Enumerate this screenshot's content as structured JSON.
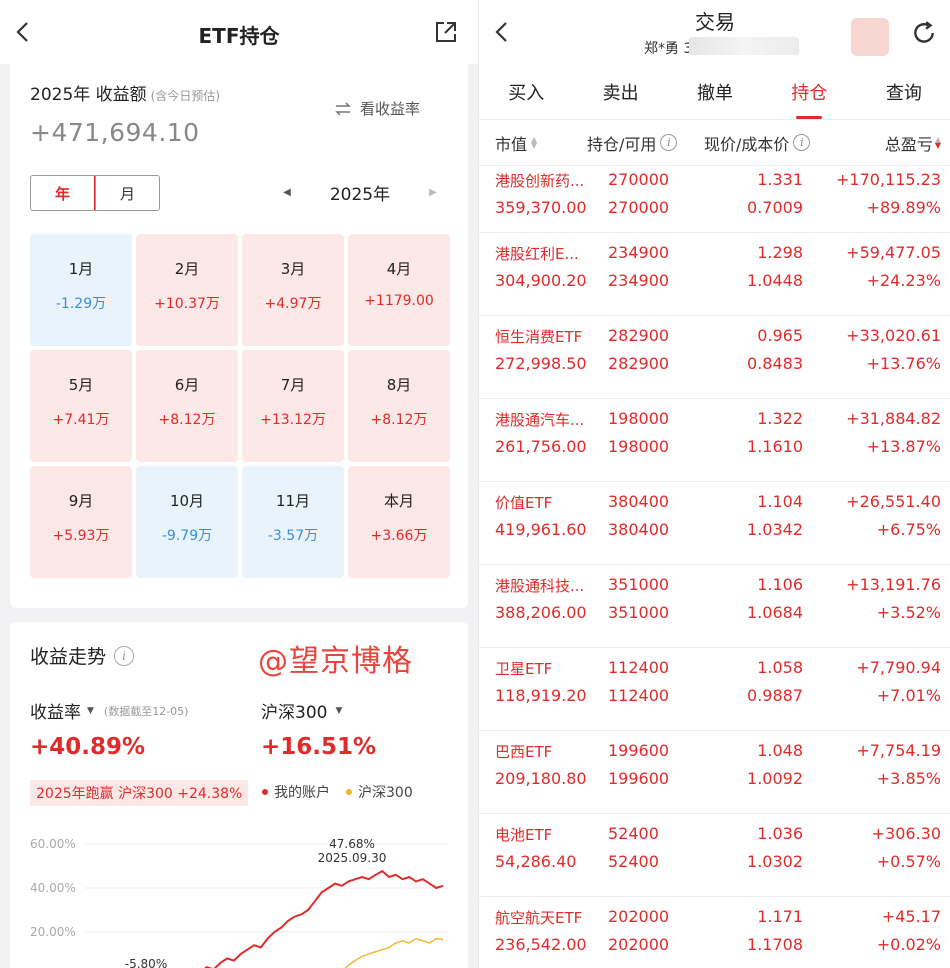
{
  "left": {
    "header": {
      "title": "ETF持仓"
    },
    "summary": {
      "title": "2025年 收益额",
      "estimate_note": "(含今日预估)",
      "switch_label": "看收益率",
      "amount": "+471,694.10"
    },
    "segment": {
      "year_label": "年",
      "month_label": "月"
    },
    "year_nav": {
      "year": "2025年"
    },
    "months": [
      {
        "month": "1月",
        "value": "-1.29万",
        "sign": "neg"
      },
      {
        "month": "2月",
        "value": "+10.37万",
        "sign": "pos"
      },
      {
        "month": "3月",
        "value": "+4.97万",
        "sign": "pos"
      },
      {
        "month": "4月",
        "value": "+1179.00",
        "sign": "pos"
      },
      {
        "month": "5月",
        "value": "+7.41万",
        "sign": "pos"
      },
      {
        "month": "6月",
        "value": "+8.12万",
        "sign": "pos"
      },
      {
        "month": "7月",
        "value": "+13.12万",
        "sign": "pos"
      },
      {
        "month": "8月",
        "value": "+8.12万",
        "sign": "pos"
      },
      {
        "month": "9月",
        "value": "+5.93万",
        "sign": "pos"
      },
      {
        "month": "10月",
        "value": "-9.79万",
        "sign": "neg"
      },
      {
        "month": "11月",
        "value": "-3.57万",
        "sign": "neg"
      },
      {
        "month": "本月",
        "value": "+3.66万",
        "sign": "pos"
      }
    ],
    "trend": {
      "title": "收益走势",
      "watermark": "@望京博格",
      "rate_label": "收益率",
      "data_note": "(数据截至12-05)",
      "bench_label": "沪深300",
      "rate_value": "+40.89%",
      "bench_value": "+16.51%",
      "beat_text": "2025年跑赢 沪深300 +24.38%",
      "legend_mine": "我的账户",
      "legend_bench": "沪深300",
      "colors": {
        "mine": "#e02b2b",
        "bench": "#f0b429"
      }
    }
  },
  "chart_data": {
    "type": "line",
    "y_ticks": [
      "60.00%",
      "40.00%",
      "20.00%"
    ],
    "ylim": [
      0,
      60
    ],
    "annotations": [
      {
        "text": "47.68%",
        "x": "2025.09.30",
        "y": 47.68
      },
      {
        "text": "2025.09.30",
        "x": "2025.09.30",
        "y": 47.68
      },
      {
        "text": "-5.80%",
        "y": -5.8
      }
    ],
    "series": [
      {
        "name": "我的账户",
        "values": [
          -5.8,
          -3,
          -1,
          2,
          4,
          3,
          6,
          8,
          7,
          10,
          12,
          14,
          13,
          17,
          20,
          22,
          25,
          27,
          28,
          30,
          34,
          38,
          40,
          42,
          41,
          43,
          44,
          45,
          44,
          46,
          47.68,
          45,
          46,
          44,
          45,
          43,
          44,
          42,
          40,
          41
        ]
      },
      {
        "name": "沪深300",
        "values": [
          null,
          null,
          null,
          null,
          null,
          null,
          null,
          null,
          null,
          null,
          null,
          null,
          null,
          null,
          null,
          null,
          null,
          null,
          null,
          null,
          null,
          -6,
          -4,
          -2,
          2,
          5,
          7,
          9,
          10,
          11,
          12,
          13,
          15,
          16,
          15,
          17,
          16,
          15,
          17,
          16.51
        ]
      }
    ]
  },
  "right": {
    "header": {
      "title": "交易",
      "account": "郑*勇 3"
    },
    "tabs": [
      "买入",
      "卖出",
      "撤单",
      "持仓",
      "查询"
    ],
    "active_tab": "持仓",
    "columns": {
      "c1": "市值",
      "c2": "持仓/可用",
      "c3": "现价/成本价",
      "c4": "总盈亏"
    },
    "rows": [
      {
        "name": "港股创新药...",
        "mv": "359,370.00",
        "q1": "270000",
        "q2": "270000",
        "p1": "1.331",
        "p2": "0.7009",
        "g1": "+170,115.23",
        "g2": "+89.89%"
      },
      {
        "name": "港股红利E...",
        "mv": "304,900.20",
        "q1": "234900",
        "q2": "234900",
        "p1": "1.298",
        "p2": "1.0448",
        "g1": "+59,477.05",
        "g2": "+24.23%"
      },
      {
        "name": "恒生消费ETF",
        "mv": "272,998.50",
        "q1": "282900",
        "q2": "282900",
        "p1": "0.965",
        "p2": "0.8483",
        "g1": "+33,020.61",
        "g2": "+13.76%"
      },
      {
        "name": "港股通汽车...",
        "mv": "261,756.00",
        "q1": "198000",
        "q2": "198000",
        "p1": "1.322",
        "p2": "1.1610",
        "g1": "+31,884.82",
        "g2": "+13.87%"
      },
      {
        "name": "价值ETF",
        "mv": "419,961.60",
        "q1": "380400",
        "q2": "380400",
        "p1": "1.104",
        "p2": "1.0342",
        "g1": "+26,551.40",
        "g2": "+6.75%"
      },
      {
        "name": "港股通科技...",
        "mv": "388,206.00",
        "q1": "351000",
        "q2": "351000",
        "p1": "1.106",
        "p2": "1.0684",
        "g1": "+13,191.76",
        "g2": "+3.52%"
      },
      {
        "name": "卫星ETF",
        "mv": "118,919.20",
        "q1": "112400",
        "q2": "112400",
        "p1": "1.058",
        "p2": "0.9887",
        "g1": "+7,790.94",
        "g2": "+7.01%"
      },
      {
        "name": "巴西ETF",
        "mv": "209,180.80",
        "q1": "199600",
        "q2": "199600",
        "p1": "1.048",
        "p2": "1.0092",
        "g1": "+7,754.19",
        "g2": "+3.85%"
      },
      {
        "name": "电池ETF",
        "mv": "54,286.40",
        "q1": "52400",
        "q2": "52400",
        "p1": "1.036",
        "p2": "1.0302",
        "g1": "+306.30",
        "g2": "+0.57%"
      },
      {
        "name": "航空航天ETF",
        "mv": "236,542.00",
        "q1": "202000",
        "q2": "202000",
        "p1": "1.171",
        "p2": "1.1708",
        "g1": "+45.17",
        "g2": "+0.02%"
      }
    ]
  }
}
